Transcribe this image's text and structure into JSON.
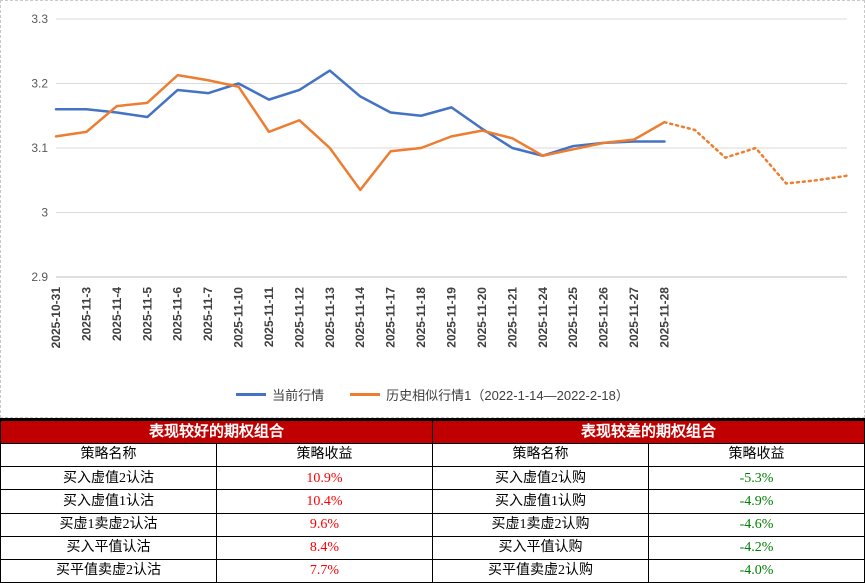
{
  "chart": {
    "y_ticks": [
      "3.3",
      "3.2",
      "3.1",
      "3",
      "2.9"
    ],
    "legend": [
      {
        "label": "当前行情",
        "color": "#4472C4"
      },
      {
        "label": "历史相似行情1（2022-1-14—2022-2-18）",
        "color": "#ED7D31"
      }
    ]
  },
  "chart_data": {
    "type": "line",
    "title": "",
    "xlabel": "",
    "ylabel": "",
    "ylim": [
      2.9,
      3.3
    ],
    "grid": true,
    "legend_position": "bottom",
    "categories": [
      "2025-10-31",
      "2025-11-3",
      "2025-11-4",
      "2025-11-5",
      "2025-11-6",
      "2025-11-7",
      "2025-11-10",
      "2025-11-11",
      "2025-11-12",
      "2025-11-13",
      "2025-11-14",
      "2025-11-17",
      "2025-11-18",
      "2025-11-19",
      "2025-11-20",
      "2025-11-21",
      "2025-11-24",
      "2025-11-25",
      "2025-11-26",
      "2025-11-27",
      "2025-11-28"
    ],
    "series": [
      {
        "name": "当前行情",
        "color": "#4472C4",
        "style": "solid",
        "values": [
          3.16,
          3.16,
          3.155,
          3.148,
          3.19,
          3.185,
          3.2,
          3.175,
          3.19,
          3.22,
          3.18,
          3.155,
          3.15,
          3.163,
          3.13,
          3.1,
          3.088,
          3.103,
          3.108,
          3.11,
          3.11
        ]
      },
      {
        "name": "历史相似行情1（2022-1-14—2022-2-18）",
        "color": "#ED7D31",
        "style": "solid-then-dotted",
        "values": [
          3.118,
          3.125,
          3.165,
          3.17,
          3.213,
          3.205,
          3.195,
          3.125,
          3.143,
          3.1,
          3.035,
          3.095,
          3.1,
          3.118,
          3.127,
          3.115,
          3.088,
          3.098,
          3.108,
          3.113,
          3.14
        ],
        "forecast_values": [
          3.14,
          3.128,
          3.085,
          3.1,
          3.045,
          3.05,
          3.057
        ]
      }
    ]
  },
  "table": {
    "good": {
      "title": "表现较好的期权组合",
      "col_name": "策略名称",
      "col_value": "策略收益",
      "rows": [
        {
          "name": "买入虚值2认沽",
          "value": "10.9%"
        },
        {
          "name": "买入虚值1认沽",
          "value": "10.4%"
        },
        {
          "name": "买虚1卖虚2认沽",
          "value": "9.6%"
        },
        {
          "name": "买入平值认沽",
          "value": "8.4%"
        },
        {
          "name": "买平值卖虚2认沽",
          "value": "7.7%"
        }
      ]
    },
    "bad": {
      "title": "表现较差的期权组合",
      "col_name": "策略名称",
      "col_value": "策略收益",
      "rows": [
        {
          "name": "买入虚值2认购",
          "value": "-5.3%"
        },
        {
          "name": "买入虚值1认购",
          "value": "-4.9%"
        },
        {
          "name": "买虚1卖虚2认购",
          "value": "-4.6%"
        },
        {
          "name": "买入平值认购",
          "value": "-4.2%"
        },
        {
          "name": "买平值卖虚2认购",
          "value": "-4.0%"
        }
      ]
    }
  },
  "colors": {
    "header_bg": "#C00000",
    "positive_value": "#FF0000",
    "negative_value": "#008000",
    "gridline": "#D9D9D9",
    "axis": "#BFBFBF",
    "series_blue": "#4472C4",
    "series_orange": "#ED7D31"
  }
}
